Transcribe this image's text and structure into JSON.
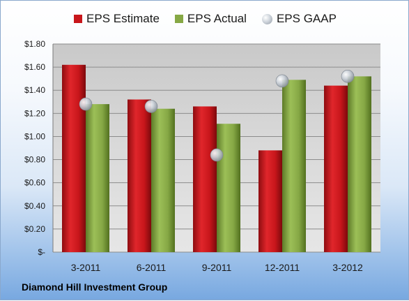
{
  "chart_data": {
    "type": "bar",
    "categories": [
      "3-2011",
      "6-2011",
      "9-2011",
      "12-2011",
      "3-2012"
    ],
    "series": [
      {
        "name": "EPS Estimate",
        "type": "bar",
        "color": "#c8161b",
        "values": [
          1.62,
          1.32,
          1.26,
          0.88,
          1.44
        ]
      },
      {
        "name": "EPS Actual",
        "type": "bar",
        "color": "#86a845",
        "values": [
          1.28,
          1.24,
          1.11,
          1.49,
          1.52
        ]
      },
      {
        "name": "EPS GAAP",
        "type": "scatter",
        "color": "#b8bfc8",
        "values": [
          1.28,
          1.26,
          0.84,
          1.48,
          1.52
        ]
      }
    ],
    "ylim": [
      0,
      1.8
    ],
    "yticks": [
      {
        "value": 1.8,
        "label": "$1.80"
      },
      {
        "value": 1.6,
        "label": "$1.60"
      },
      {
        "value": 1.4,
        "label": "$1.40"
      },
      {
        "value": 1.2,
        "label": "$1.20"
      },
      {
        "value": 1.0,
        "label": "$1.00"
      },
      {
        "value": 0.8,
        "label": "$0.80"
      },
      {
        "value": 0.6,
        "label": "$0.60"
      },
      {
        "value": 0.4,
        "label": "$0.40"
      },
      {
        "value": 0.2,
        "label": "$0.20"
      },
      {
        "value": 0.0,
        "label": "$-"
      }
    ],
    "grid": true,
    "legend": "top"
  },
  "footer": {
    "company": "Diamond Hill Investment Group"
  }
}
